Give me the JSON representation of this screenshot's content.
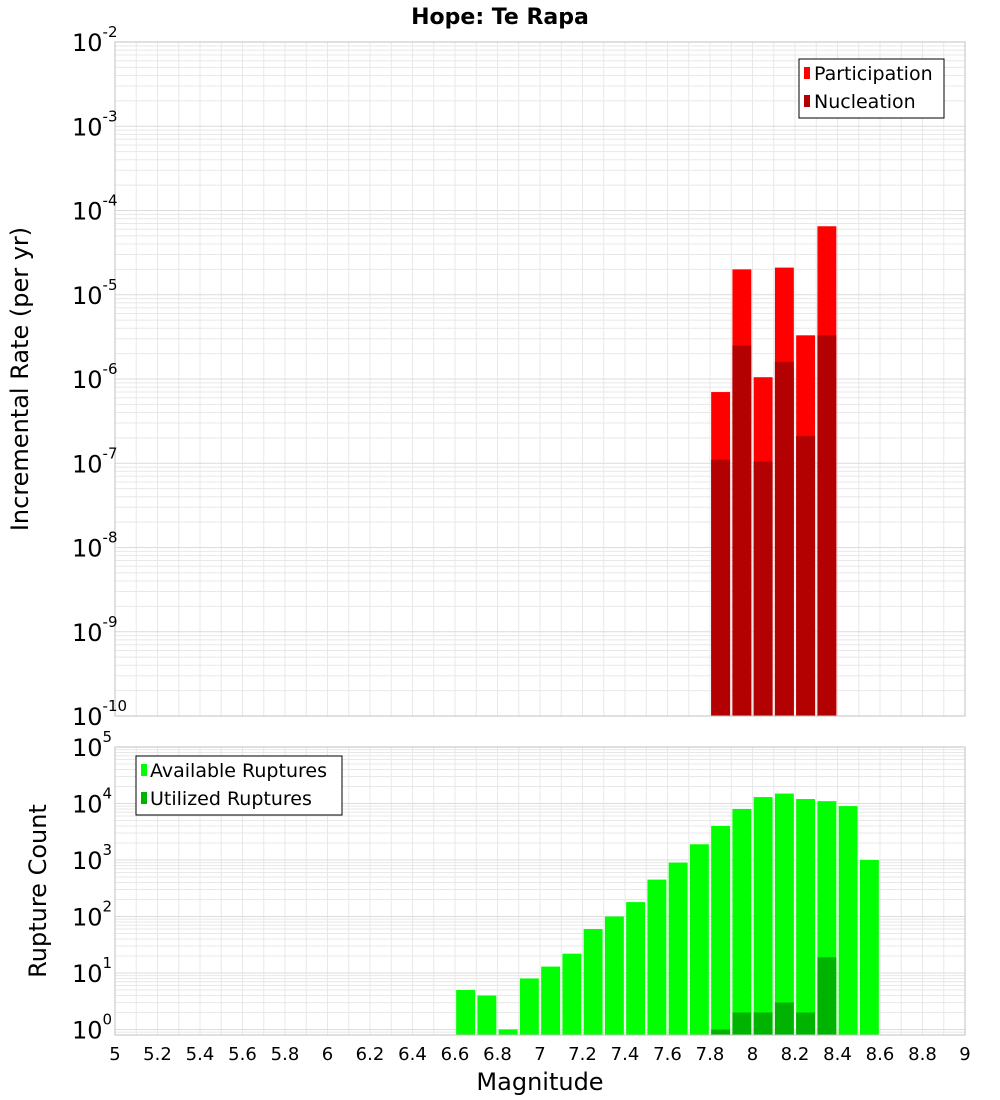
{
  "title": "Hope: Te Rapa",
  "colors": {
    "participation": "#ff0000",
    "nucleation": "#b30000",
    "available": "#00ff00",
    "utilized": "#00b300",
    "grid": "#e8e8e8",
    "frame": "#c0c0c0"
  },
  "x_axis": {
    "label": "Magnitude",
    "range": [
      5,
      9
    ],
    "ticks": [
      "5",
      "5.2",
      "5.4",
      "5.6",
      "5.8",
      "6",
      "6.2",
      "6.4",
      "6.6",
      "6.8",
      "7",
      "7.2",
      "7.4",
      "7.6",
      "7.8",
      "8",
      "8.2",
      "8.4",
      "8.6",
      "8.8",
      "9"
    ]
  },
  "chart_data": [
    {
      "type": "bar",
      "scale": "log",
      "ylabel": "Incremental Rate (per yr)",
      "ylim": [
        1e-10,
        0.01
      ],
      "y_ticks": [
        {
          "base": "10",
          "exp": "-10"
        },
        {
          "base": "10",
          "exp": "-9"
        },
        {
          "base": "10",
          "exp": "-8"
        },
        {
          "base": "10",
          "exp": "-7"
        },
        {
          "base": "10",
          "exp": "-6"
        },
        {
          "base": "10",
          "exp": "-5"
        },
        {
          "base": "10",
          "exp": "-4"
        },
        {
          "base": "10",
          "exp": "-3"
        },
        {
          "base": "10",
          "exp": "-2"
        }
      ],
      "legend_position": "top-right",
      "x": [
        7.85,
        7.95,
        8.05,
        8.15,
        8.25,
        8.35
      ],
      "series": [
        {
          "name": "Participation",
          "values": [
            7e-07,
            2e-05,
            1.05e-06,
            2.1e-05,
            3.3e-06,
            6.5e-05
          ]
        },
        {
          "name": "Nucleation",
          "values": [
            1.1e-07,
            2.5e-06,
            1.05e-07,
            1.6e-06,
            2.1e-07,
            3.3e-06
          ]
        }
      ]
    },
    {
      "type": "bar",
      "scale": "log",
      "ylabel": "Rupture Count",
      "ylim": [
        0.8,
        100000.0
      ],
      "y_ticks": [
        {
          "base": "10",
          "exp": "0"
        },
        {
          "base": "10",
          "exp": "1"
        },
        {
          "base": "10",
          "exp": "2"
        },
        {
          "base": "10",
          "exp": "3"
        },
        {
          "base": "10",
          "exp": "4"
        },
        {
          "base": "10",
          "exp": "5"
        }
      ],
      "legend_position": "top-left",
      "x": [
        6.65,
        6.75,
        6.85,
        6.95,
        7.05,
        7.15,
        7.25,
        7.35,
        7.45,
        7.55,
        7.65,
        7.75,
        7.85,
        7.95,
        8.05,
        8.15,
        8.25,
        8.35,
        8.45,
        8.55
      ],
      "series": [
        {
          "name": "Available Ruptures",
          "values": [
            5,
            4,
            1,
            8,
            13,
            22,
            60,
            100,
            180,
            450,
            900,
            1900,
            4000,
            8000,
            13000,
            15000,
            12000,
            11000,
            9000,
            1000
          ]
        },
        {
          "name": "Utilized Ruptures",
          "values": [
            null,
            null,
            null,
            null,
            null,
            null,
            null,
            null,
            null,
            null,
            null,
            null,
            1,
            2,
            2,
            3,
            2,
            19,
            null,
            null
          ]
        }
      ]
    }
  ]
}
